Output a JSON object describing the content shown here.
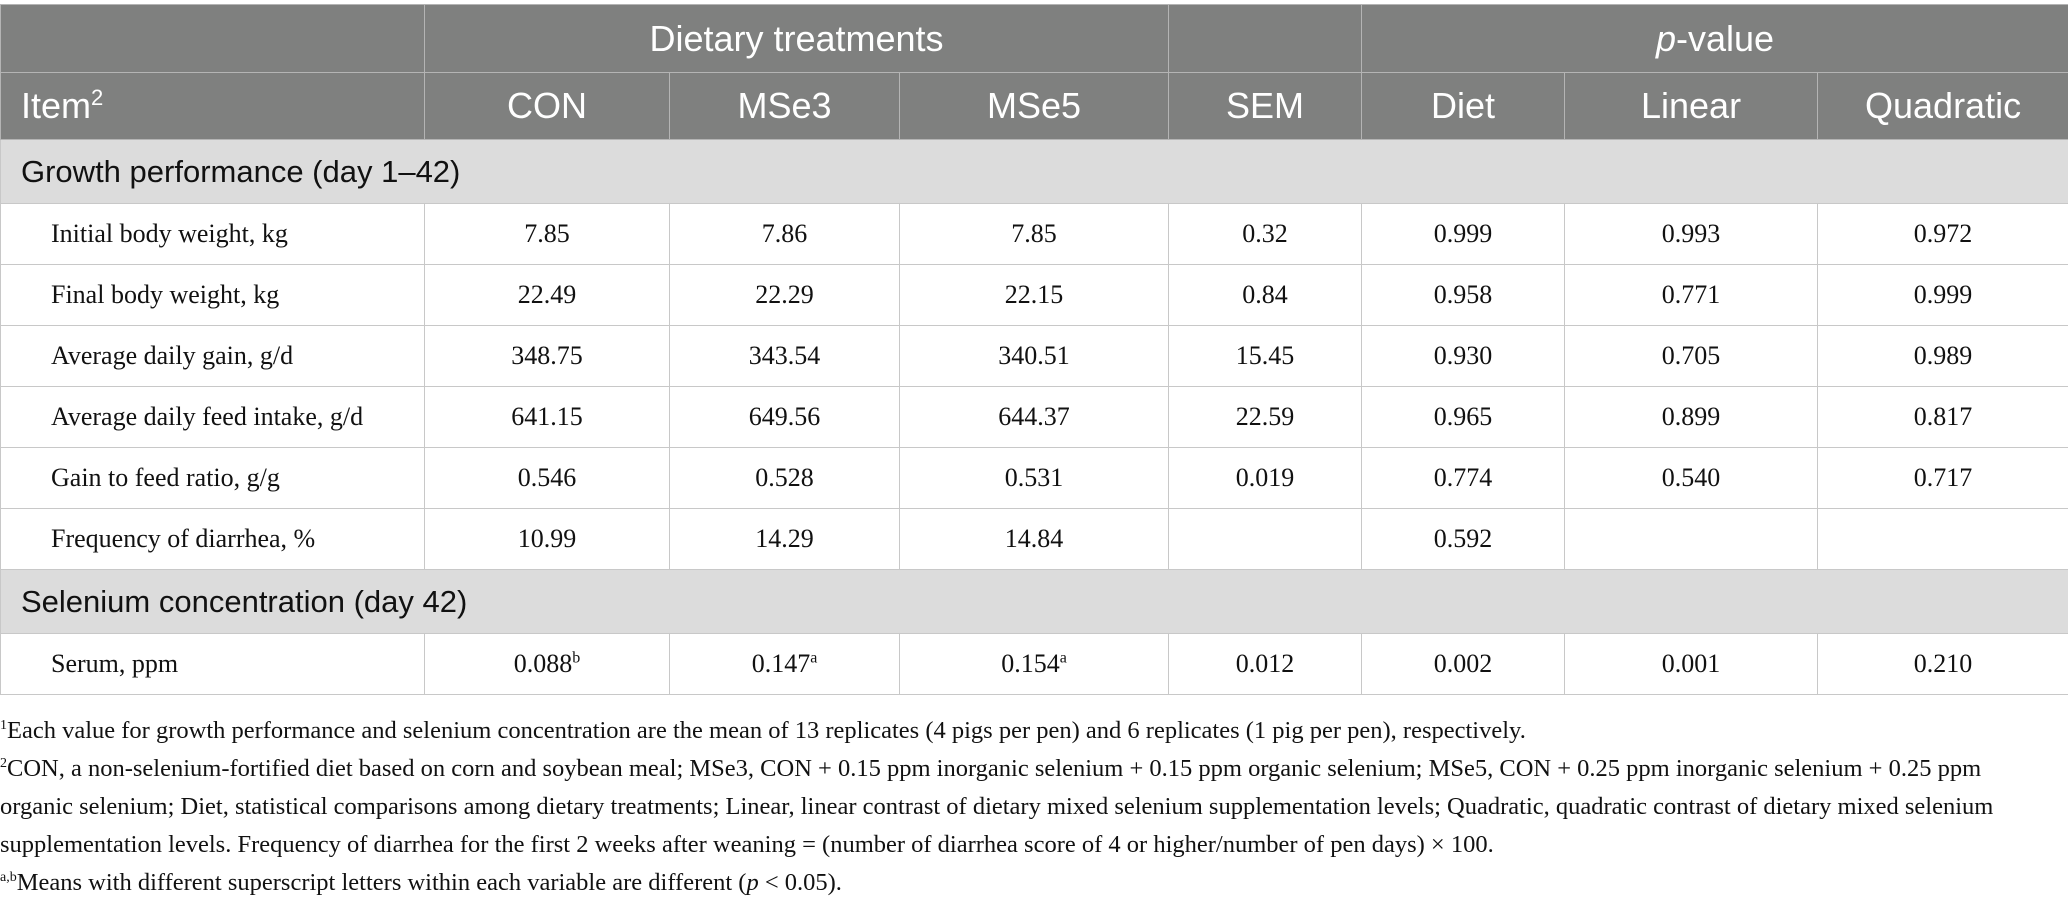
{
  "header": {
    "group_dietary": "Dietary treatments",
    "group_pvalue_italic": "p",
    "group_pvalue_rest": "-value",
    "item_label": "Item",
    "item_sup": "2",
    "columns": [
      "CON",
      "MSe3",
      "MSe5",
      "SEM",
      "Diet",
      "Linear",
      "Quadratic"
    ]
  },
  "sections": [
    {
      "title": "Growth performance (day 1–42)",
      "rows": [
        {
          "label": "Initial body weight, kg",
          "values": [
            "7.85",
            "7.86",
            "7.85",
            "0.32",
            "0.999",
            "0.993",
            "0.972"
          ]
        },
        {
          "label": "Final body weight, kg",
          "values": [
            "22.49",
            "22.29",
            "22.15",
            "0.84",
            "0.958",
            "0.771",
            "0.999"
          ]
        },
        {
          "label": "Average daily gain, g/d",
          "values": [
            "348.75",
            "343.54",
            "340.51",
            "15.45",
            "0.930",
            "0.705",
            "0.989"
          ]
        },
        {
          "label": "Average daily feed intake, g/d",
          "values": [
            "641.15",
            "649.56",
            "644.37",
            "22.59",
            "0.965",
            "0.899",
            "0.817"
          ]
        },
        {
          "label": "Gain to feed ratio, g/g",
          "values": [
            "0.546",
            "0.528",
            "0.531",
            "0.019",
            "0.774",
            "0.540",
            "0.717"
          ]
        },
        {
          "label": "Frequency of diarrhea, %",
          "values": [
            "10.99",
            "14.29",
            "14.84",
            "",
            "0.592",
            "",
            ""
          ]
        }
      ]
    },
    {
      "title": "Selenium concentration (day 42)",
      "rows": [
        {
          "label": "Serum, ppm",
          "values": [
            "0.088",
            "0.147",
            "0.154",
            "0.012",
            "0.002",
            "0.001",
            "0.210"
          ],
          "sups": [
            "b",
            "a",
            "a",
            "",
            "",
            "",
            ""
          ]
        }
      ]
    }
  ],
  "footnotes": {
    "fn1_mark": "1",
    "fn1_text": "Each value for growth performance and selenium concentration are the mean of 13 replicates (4 pigs per pen) and 6 replicates (1 pig per pen), respectively.",
    "fn2_mark": "2",
    "fn2_text": "CON, a non-selenium-fortified diet based on corn and soybean meal; MSe3, CON + 0.15 ppm inorganic selenium + 0.15 ppm organic selenium; MSe5, CON + 0.25 ppm inorganic selenium + 0.25 ppm organic selenium; Diet, statistical comparisons among dietary treatments; Linear, linear contrast of dietary mixed selenium supplementation levels; Quadratic, quadratic contrast of dietary mixed selenium supplementation levels. Frequency of diarrhea for the first 2 weeks after weaning = (number of diarrhea score of 4 or higher/number of pen days) × 100.",
    "fn3_mark": "a,b",
    "fn3_text_a": "Means with different superscript letters within each variable are different (",
    "fn3_text_p": "p",
    "fn3_text_b": " < 0.05)."
  }
}
